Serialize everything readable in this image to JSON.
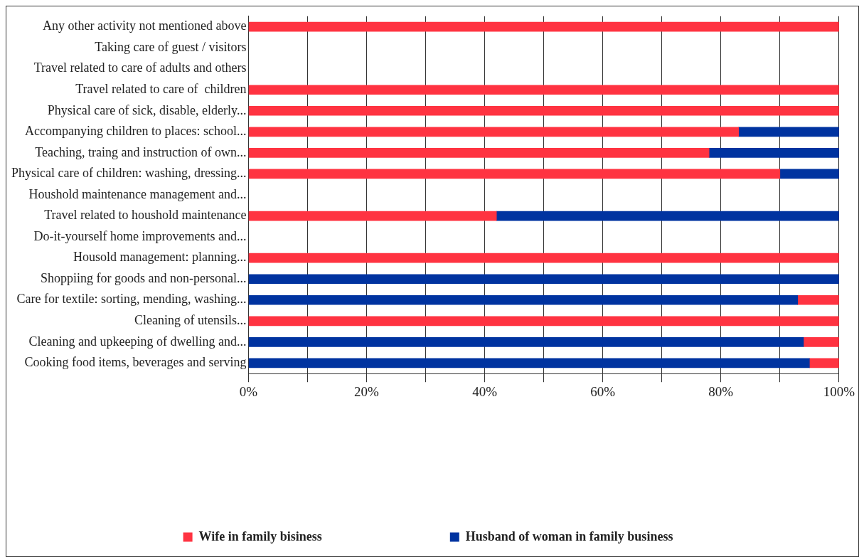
{
  "chart_data": {
    "type": "bar",
    "orientation": "horizontal",
    "stacked": true,
    "categories": [
      "Any other activity not mentioned above",
      "Taking care of guest / visitors",
      "Travel related to care of adults and others",
      "Travel related to care of  children",
      "Physical care of sick, disable, elderly...",
      "Accompanying children to places: school...",
      "Teaching, traing and instruction of own...",
      "Physical care of children: washing, dressing...",
      "Houshold maintenance management and...",
      "Travel related to houshold maintenance",
      "Do-it-yourself home improvements and...",
      "Housold management: planning...",
      "Shoppiing for goods and non-personal...",
      "Care for textile: sorting, mending, washing...",
      "Cleaning of utensils...",
      "Cleaning and upkeeping of dwelling and...",
      "Cooking food items, beverages and serving"
    ],
    "series": [
      {
        "color": "#0033a0",
        "values": [
          null,
          null,
          null,
          null,
          null,
          null,
          null,
          null,
          null,
          null,
          null,
          null,
          100,
          93,
          null,
          94,
          95
        ]
      },
      {
        "name": "Wife in family bisiness",
        "color": "#ff3341",
        "values": [
          100,
          null,
          null,
          100,
          100,
          83,
          78,
          90,
          null,
          42,
          null,
          100,
          null,
          7,
          100,
          6,
          5
        ]
      },
      {
        "name": "Husband of woman in family business",
        "color": "#0033a0",
        "values": [
          null,
          null,
          null,
          null,
          null,
          17,
          22,
          10,
          null,
          58,
          null,
          null,
          null,
          null,
          null,
          null,
          null
        ]
      }
    ],
    "xlim": [
      0,
      100
    ],
    "xticks": [
      {
        "value": 0,
        "label": "0%"
      },
      {
        "value": 10,
        "label": null
      },
      {
        "value": 20,
        "label": "20%"
      },
      {
        "value": 30,
        "label": null
      },
      {
        "value": 40,
        "label": "40%"
      },
      {
        "value": 50,
        "label": null
      },
      {
        "value": 60,
        "label": "60%"
      },
      {
        "value": 70,
        "label": null
      },
      {
        "value": 80,
        "label": "80%"
      },
      {
        "value": 90,
        "label": null
      },
      {
        "value": 100,
        "label": "100%"
      }
    ],
    "grid": "x",
    "legend": "bottom"
  }
}
